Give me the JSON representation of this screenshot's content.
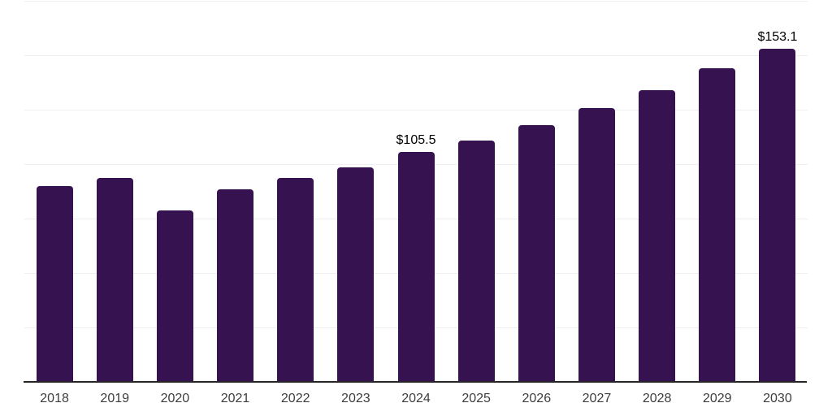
{
  "chart_data": {
    "type": "bar",
    "title": "",
    "xlabel": "",
    "ylabel": "",
    "categories": [
      "2018",
      "2019",
      "2020",
      "2021",
      "2022",
      "2023",
      "2024",
      "2025",
      "2026",
      "2027",
      "2028",
      "2029",
      "2030"
    ],
    "values": [
      90.1,
      93.7,
      78.6,
      88.3,
      93.6,
      98.6,
      105.5,
      110.8,
      117.9,
      125.6,
      134.1,
      143.9,
      153.1
    ],
    "data_labels": [
      "",
      "",
      "",
      "",
      "",
      "",
      "$105.5",
      "",
      "",
      "",
      "",
      "",
      "$153.1"
    ],
    "ylim": [
      0,
      175
    ],
    "grid_interval": 25,
    "grid": true,
    "legend": false,
    "colors": {
      "bar": "#371250",
      "gridline": "#efefef",
      "axis_line": "#262626",
      "tick_label": "#3d3d3d",
      "data_label": "#000000",
      "background": "#ffffff"
    }
  }
}
